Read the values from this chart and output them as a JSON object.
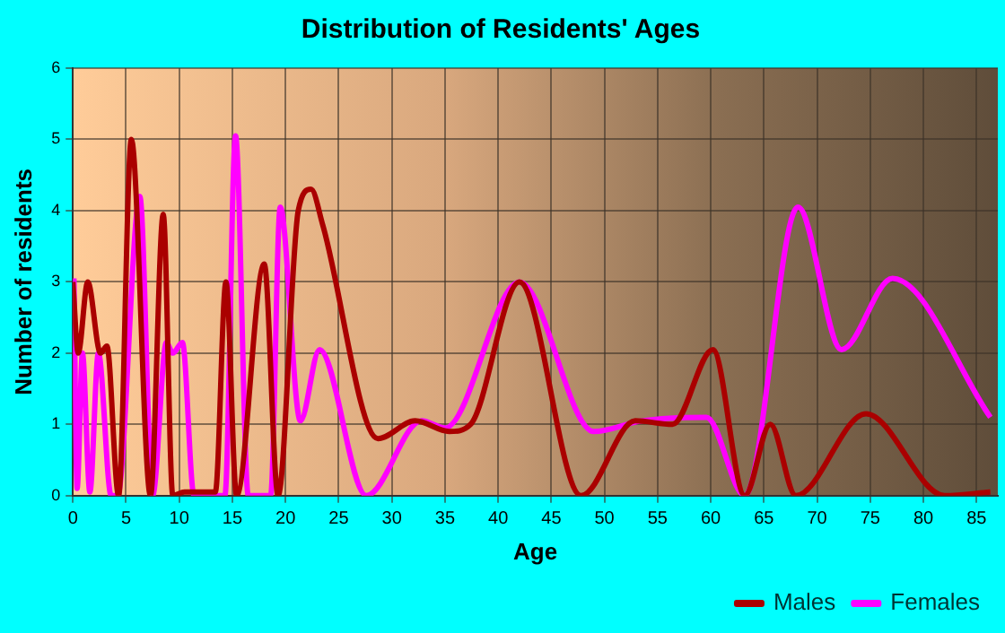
{
  "chart_data": {
    "type": "line",
    "title": "Distribution of Residents' Ages",
    "xlabel": "Age",
    "ylabel": "Number of residents",
    "xlim": [
      0,
      87
    ],
    "xticks": [
      0,
      5,
      10,
      15,
      20,
      25,
      30,
      35,
      40,
      45,
      50,
      55,
      60,
      65,
      70,
      75,
      80,
      85
    ],
    "ylim": [
      0,
      6
    ],
    "yticks": [
      0,
      1,
      2,
      3,
      4,
      5,
      6
    ],
    "grid": true,
    "legend": "bottom right",
    "marker": "none",
    "line_style": "solid",
    "series": [
      {
        "name": "Males",
        "color": "#aa0000",
        "x": [
          0,
          0.5,
          1.4,
          2.6,
          3.2,
          4.3,
          5.5,
          7.3,
          8.5,
          9.4,
          10.5,
          13.4,
          14.4,
          15.4,
          18,
          19.3,
          21.2,
          22.4,
          23.5,
          28.7,
          32.2,
          35.4,
          37.4,
          42,
          47.8,
          52.9,
          56.4,
          60.2,
          63.2,
          65.6,
          68,
          74.6,
          82,
          86.3
        ],
        "values": [
          3,
          2,
          3,
          2,
          2.1,
          0,
          5,
          0,
          3.95,
          0,
          0.05,
          0.05,
          3,
          0,
          3.25,
          0,
          4,
          4.3,
          3.8,
          0.8,
          1.05,
          0.9,
          1,
          3,
          0,
          1.05,
          1,
          2.05,
          0,
          1,
          0,
          1.15,
          0,
          0.05
        ]
      },
      {
        "name": "Females",
        "color": "#ff00ff",
        "x": [
          0.1,
          0.4,
          0.9,
          1.6,
          2.4,
          3.6,
          4.2,
          6.3,
          7.5,
          8.8,
          9.4,
          10.3,
          11.4,
          14.3,
          15.3,
          16.5,
          18.6,
          19.5,
          21.4,
          23.2,
          27.6,
          32.8,
          35,
          42,
          49,
          53.5,
          59.6,
          63.2,
          68.2,
          72.3,
          77.1,
          86.3
        ],
        "values": [
          3.05,
          0.1,
          2,
          0.05,
          2,
          0,
          0,
          4.2,
          0,
          2.15,
          2,
          2.15,
          0,
          0,
          5.05,
          0,
          0,
          4.05,
          1.05,
          2.05,
          0,
          1.05,
          0.95,
          3,
          0.9,
          1.05,
          1.1,
          0,
          4.05,
          2.05,
          3.05,
          1.1
        ]
      }
    ]
  }
}
